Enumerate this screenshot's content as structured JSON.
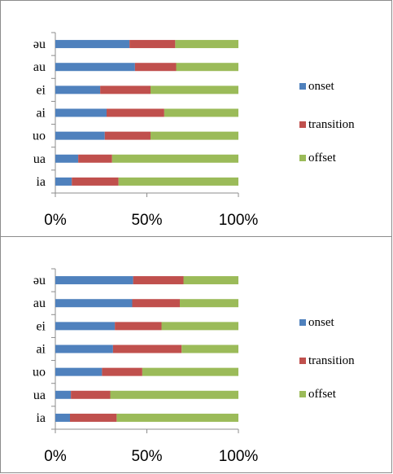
{
  "chart_data": [
    {
      "type": "bar",
      "orientation": "horizontal",
      "stacked": "percent",
      "categories": [
        "ia",
        "ua",
        "uo",
        "ai",
        "ei",
        "au",
        "əu"
      ],
      "xlim": [
        0,
        100
      ],
      "xticks": [
        "0%",
        "50%",
        "100%"
      ],
      "legend_position": "right",
      "grid": false,
      "series": [
        {
          "name": "onset",
          "color": "#4f81bd",
          "values": [
            9,
            12.5,
            27,
            28,
            24.5,
            43.5,
            40.5
          ]
        },
        {
          "name": "transition",
          "color": "#c0504d",
          "values": [
            25.5,
            18.5,
            25,
            31.5,
            27.5,
            22.5,
            25
          ]
        },
        {
          "name": "offset",
          "color": "#9bbb59",
          "values": [
            65.5,
            69,
            48,
            40.5,
            48,
            34,
            34.5
          ]
        }
      ]
    },
    {
      "type": "bar",
      "orientation": "horizontal",
      "stacked": "percent",
      "categories": [
        "ia",
        "ua",
        "uo",
        "ai",
        "ei",
        "au",
        "əu"
      ],
      "xlim": [
        0,
        100
      ],
      "xticks": [
        "0%",
        "50%",
        "100%"
      ],
      "legend_position": "right",
      "grid": false,
      "series": [
        {
          "name": "onset",
          "color": "#4f81bd",
          "values": [
            8,
            8.5,
            25.5,
            31.5,
            32.5,
            42,
            42.5
          ]
        },
        {
          "name": "transition",
          "color": "#c0504d",
          "values": [
            25.5,
            21.5,
            22,
            37.5,
            25.5,
            26,
            27.5
          ]
        },
        {
          "name": "offset",
          "color": "#9bbb59",
          "values": [
            66.5,
            70,
            52.5,
            31,
            42,
            32,
            30
          ]
        }
      ]
    }
  ]
}
